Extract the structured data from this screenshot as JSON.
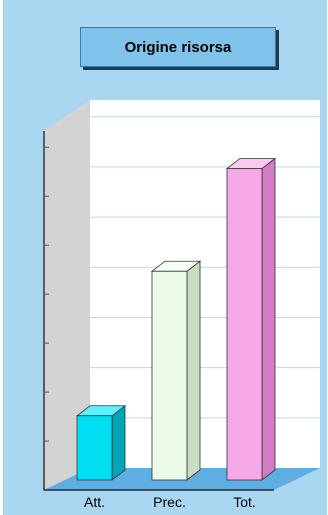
{
  "title": "Origine risorsa",
  "chart_data": {
    "type": "bar",
    "title": "Origine risorsa",
    "categories": [
      "Att.",
      "Prec.",
      "Tot."
    ],
    "values": [
      4,
      13,
      19.4
    ],
    "ylim": [
      0,
      22
    ],
    "xlabel": "",
    "ylabel": "",
    "grid": true,
    "colors": {
      "Att.": {
        "front": "#00e0f2",
        "side": "#00a6b8",
        "top": "#5ff0ff"
      },
      "Prec.": {
        "front": "#ebfbe7",
        "side": "#c8ddc2",
        "top": "#f6fff4"
      },
      "Tot.": {
        "front": "#f7a8e6",
        "side": "#d27cc3",
        "top": "#ffc8f2"
      }
    }
  }
}
